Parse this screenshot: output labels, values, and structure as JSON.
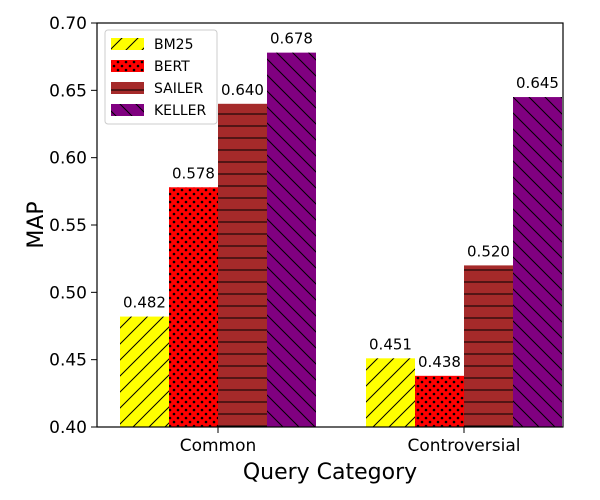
{
  "chart_data": {
    "type": "bar",
    "categories": [
      "Common",
      "Controversial"
    ],
    "series": [
      {
        "name": "BM25",
        "values": [
          0.482,
          0.451
        ],
        "labels": [
          "0.482",
          "0.451"
        ],
        "color": "#ffff00",
        "hatch": "diagonal"
      },
      {
        "name": "BERT",
        "values": [
          0.578,
          0.438
        ],
        "labels": [
          "0.578",
          "0.438"
        ],
        "color": "#ff0000",
        "hatch": "dots"
      },
      {
        "name": "SAILER",
        "values": [
          0.64,
          0.52
        ],
        "labels": [
          "0.640",
          "0.520"
        ],
        "color": "#a52a2a",
        "hatch": "horizontal"
      },
      {
        "name": "KELLER",
        "values": [
          0.678,
          0.645
        ],
        "labels": [
          "0.678",
          "0.645"
        ],
        "color": "#800080",
        "hatch": "backdiagonal"
      }
    ],
    "xlabel": "Query Category",
    "ylabel": "MAP",
    "ylim": [
      0.4,
      0.7
    ],
    "yticks": [
      "0.40",
      "0.45",
      "0.50",
      "0.55",
      "0.60",
      "0.65",
      "0.70"
    ],
    "grid": false,
    "legend_position": "top-left"
  }
}
